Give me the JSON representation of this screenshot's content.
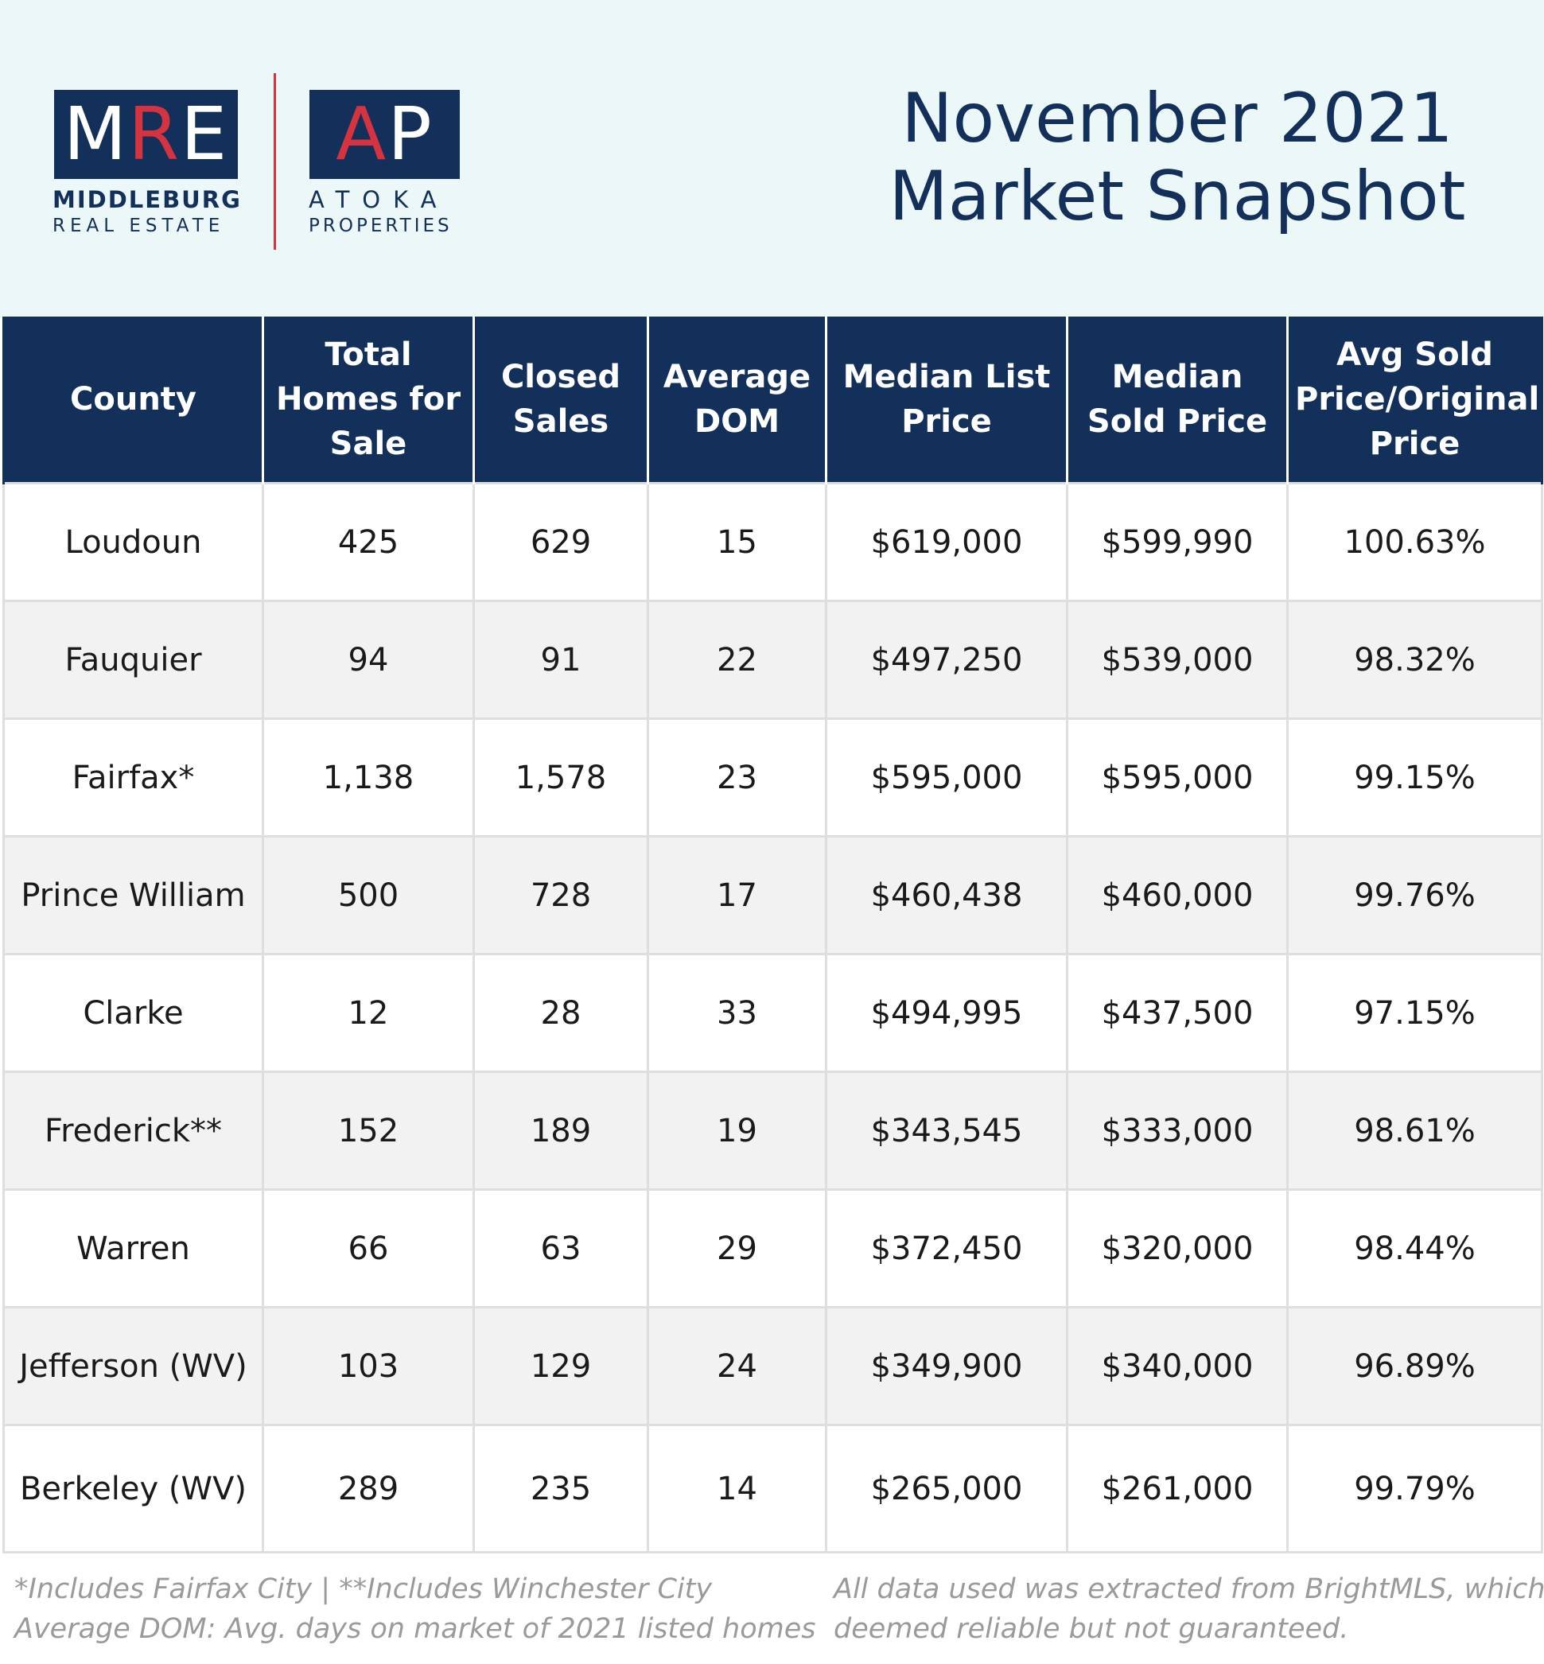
{
  "logos": {
    "mre": {
      "mark_left": "M",
      "mark_accent": "R",
      "mark_right": "E",
      "line1": "MIDDLEBURG",
      "line2": "REAL ESTATE"
    },
    "ap": {
      "mark_accent": "A",
      "mark_right": "P",
      "line1": "ATOKA",
      "line2": "PROPERTIES"
    },
    "colors": {
      "navy": "#12305a",
      "accent": "#d63340"
    }
  },
  "title": {
    "line1": "November 2021",
    "line2": "Market Snapshot"
  },
  "table": {
    "headers": [
      "County",
      "Total Homes for Sale",
      "Closed Sales",
      "Average DOM",
      "Median List Price",
      "Median Sold Price",
      "Avg Sold Price/Original Price"
    ],
    "rows": [
      [
        "Loudoun",
        "425",
        "629",
        "15",
        "$619,000",
        "$599,990",
        "100.63%"
      ],
      [
        "Fauquier",
        "94",
        "91",
        "22",
        "$497,250",
        "$539,000",
        "98.32%"
      ],
      [
        "Fairfax*",
        "1,138",
        "1,578",
        "23",
        "$595,000",
        "$595,000",
        "99.15%"
      ],
      [
        "Prince William",
        "500",
        "728",
        "17",
        "$460,438",
        "$460,000",
        "99.76%"
      ],
      [
        "Clarke",
        "12",
        "28",
        "33",
        "$494,995",
        "$437,500",
        "97.15%"
      ],
      [
        "Frederick**",
        "152",
        "189",
        "19",
        "$343,545",
        "$333,000",
        "98.61%"
      ],
      [
        "Warren",
        "66",
        "63",
        "29",
        "$372,450",
        "$320,000",
        "98.44%"
      ],
      [
        "Jefferson (WV)",
        "103",
        "129",
        "24",
        "$349,900",
        "$340,000",
        "96.89%"
      ],
      [
        "Berkeley (WV)",
        "289",
        "235",
        "14",
        "$265,000",
        "$261,000",
        "99.79%"
      ]
    ]
  },
  "footnotes": {
    "left_line1": "*Includes Fairfax City | **Includes Winchester City",
    "left_line2": "Average DOM: Avg. days on market of 2021 listed homes",
    "right_line1": "All data used was extracted from BrightMLS, which is",
    "right_line2": "deemed reliable but not guaranteed."
  }
}
